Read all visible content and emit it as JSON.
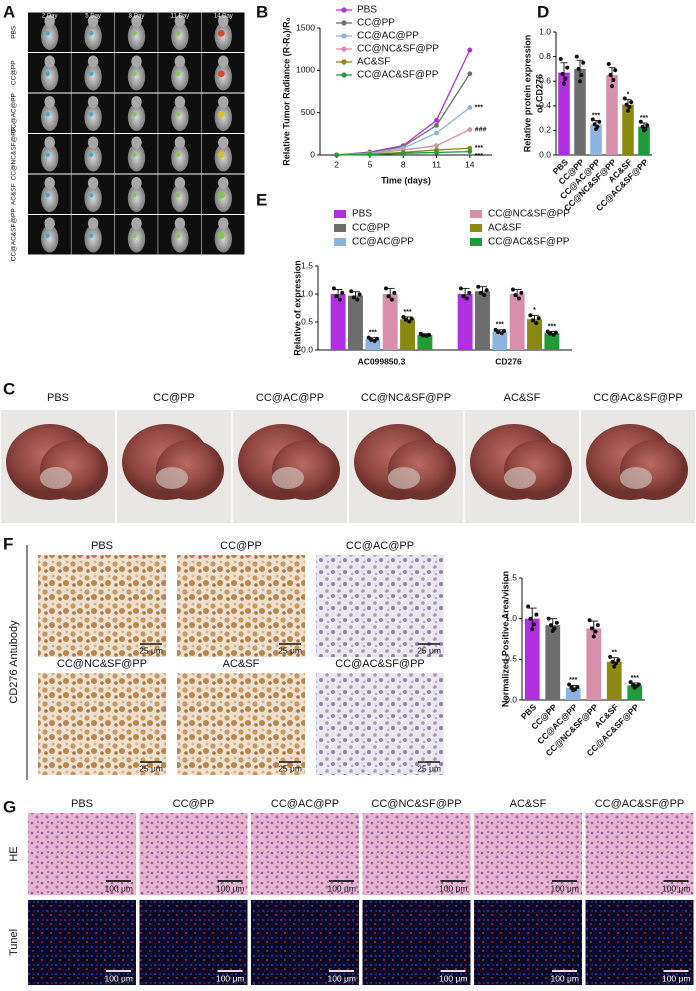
{
  "panel_labels": [
    "A",
    "B",
    "C",
    "D",
    "E",
    "F",
    "G"
  ],
  "imaging": {
    "days": [
      "2 Day",
      "5 Day",
      "8 Day",
      "11 Day",
      "14 Day"
    ],
    "groups": [
      "PBS",
      "CC@PP",
      "CC@AC@PP",
      "CC@NC&SF@PP",
      "AC&SF",
      "CC@AC&SF@PP"
    ]
  },
  "liver_photos": {
    "groups": [
      "PBS",
      "CC@PP",
      "CC@AC@PP",
      "CC@NC&SF@PP",
      "AC&SF",
      "CC@AC&SF@PP"
    ]
  },
  "ihc": {
    "stain": "CD276 Antubody",
    "groups": [
      "PBS",
      "CC@PP",
      "CC@AC@PP",
      "CC@NC&SF@PP",
      "AC&SF",
      "CC@AC&SF@PP"
    ],
    "scale": "25 μm"
  },
  "histology": {
    "groups": [
      "PBS",
      "CC@PP",
      "CC@AC@PP",
      "CC@NC&SF@PP",
      "AC&SF",
      "CC@AC&SF@PP"
    ],
    "rows": [
      "HE",
      "Tunel"
    ],
    "scale": "100 μm"
  },
  "chart_data": [
    {
      "type": "line",
      "ylabel": "Relative Tumor Radiance (R-R₀)/R₀",
      "xlabel": "Time (days)",
      "x": [
        2,
        5,
        8,
        11,
        14
      ],
      "xlim": [
        0.5,
        16
      ],
      "xticks": [
        2,
        5,
        8,
        11,
        14
      ],
      "ylim": [
        0,
        1500
      ],
      "yticks": [
        0,
        500,
        1000,
        1500
      ],
      "series": [
        {
          "name": "PBS",
          "color": "#b030e0",
          "values": [
            0,
            35,
            110,
            410,
            1240
          ]
        },
        {
          "name": "CC@PP",
          "color": "#6d6d6d",
          "values": [
            0,
            30,
            100,
            350,
            960
          ]
        },
        {
          "name": "CC@AC@PP",
          "color": "#8db3df",
          "values": [
            0,
            20,
            80,
            260,
            560
          ],
          "significance": "***"
        },
        {
          "name": "CC@NC&SF@PP",
          "color": "#d88fac",
          "values": [
            0,
            15,
            60,
            110,
            300
          ],
          "significance": "###"
        },
        {
          "name": "AC&SF",
          "color": "#8a8a12",
          "values": [
            0,
            10,
            30,
            60,
            80
          ],
          "significance": "***"
        },
        {
          "name": "CC@AC&SF@PP",
          "color": "#1f9b3a",
          "values": [
            0,
            5,
            20,
            30,
            40
          ],
          "significance": "***"
        }
      ]
    },
    {
      "type": "bar",
      "ylabel": [
        "Relative protein expression",
        "of CD276"
      ],
      "categories": [
        "PBS",
        "CC@PP",
        "CC@AC@PP",
        "CC@NC&SF@PP",
        "AC&SF",
        "CC@AC&SF@PP"
      ],
      "values": [
        0.67,
        0.7,
        0.25,
        0.65,
        0.41,
        0.23
      ],
      "errors": [
        0.08,
        0.07,
        0.03,
        0.06,
        0.04,
        0.03
      ],
      "points": [
        [
          0.78,
          0.71,
          0.66,
          0.62,
          0.58
        ],
        [
          0.8,
          0.75,
          0.7,
          0.65,
          0.6
        ],
        [
          0.29,
          0.27,
          0.25,
          0.23,
          0.21
        ],
        [
          0.74,
          0.69,
          0.65,
          0.61,
          0.56
        ],
        [
          0.46,
          0.43,
          0.41,
          0.39,
          0.36
        ],
        [
          0.27,
          0.24,
          0.23,
          0.21,
          0.2
        ]
      ],
      "colors": [
        "#b030e0",
        "#6d6d6d",
        "#8db3df",
        "#d88fac",
        "#8a8a12",
        "#1f9b3a"
      ],
      "significance": [
        null,
        null,
        "***",
        null,
        "*",
        "***"
      ],
      "ylim": [
        0,
        1.0
      ],
      "yticks": [
        {
          "value": 0,
          "label": "0.0"
        },
        0.2,
        0.4,
        0.6,
        0.8,
        {
          "value": 1,
          "label": "1.0"
        }
      ]
    },
    {
      "type": "bar",
      "ylabel": "Relative of expression",
      "categories": [
        "AC099850.3",
        "CD276"
      ],
      "ylim": [
        0,
        1.5
      ],
      "yticks": [
        {
          "value": 0,
          "label": "0.0"
        },
        0.5,
        {
          "value": 1,
          "label": "1.0"
        },
        1.5
      ],
      "series": [
        {
          "name": "PBS",
          "color": "#b030e0",
          "values": [
            1.0,
            1.0
          ],
          "errors": [
            0.08,
            0.1
          ],
          "points": [
            [
              1.1,
              1.02,
              0.96,
              0.9
            ],
            [
              1.1,
              1.02,
              0.96,
              0.92
            ]
          ]
        },
        {
          "name": "CC@PP",
          "color": "#6d6d6d",
          "values": [
            0.97,
            1.05
          ],
          "errors": [
            0.07,
            0.08
          ],
          "points": [
            [
              1.05,
              0.99,
              0.94,
              0.9
            ],
            [
              1.13,
              1.07,
              1.02,
              0.98
            ]
          ]
        },
        {
          "name": "CC@AC@PP",
          "color": "#8db3df",
          "values": [
            0.19,
            0.33
          ],
          "errors": [
            0.03,
            0.03
          ],
          "points": [
            [
              0.22,
              0.2,
              0.18,
              0.16
            ],
            [
              0.36,
              0.34,
              0.32,
              0.3
            ]
          ],
          "significance": [
            "***",
            "***"
          ]
        },
        {
          "name": "CC@NC&SF@PP",
          "color": "#d88fac",
          "values": [
            1.0,
            1.0
          ],
          "errors": [
            0.1,
            0.08
          ],
          "points": [
            [
              1.1,
              1.02,
              0.96,
              0.9
            ],
            [
              1.08,
              1.02,
              0.98,
              0.92
            ]
          ]
        },
        {
          "name": "AC&SF",
          "color": "#8a8a12",
          "values": [
            0.55,
            0.55
          ],
          "errors": [
            0.04,
            0.07
          ],
          "points": [
            [
              0.59,
              0.56,
              0.54,
              0.51
            ],
            [
              0.62,
              0.57,
              0.53,
              0.48
            ]
          ],
          "significance": [
            "***",
            "*"
          ]
        },
        {
          "name": "CC@AC&SF@PP",
          "color": "#1f9b3a",
          "values": [
            0.27,
            0.3
          ],
          "errors": [
            0.02,
            0.03
          ],
          "points": [
            [
              0.29,
              0.27,
              0.26,
              0.25
            ],
            [
              0.33,
              0.31,
              0.29,
              0.27
            ]
          ],
          "significance": [
            null,
            "***"
          ]
        }
      ]
    },
    {
      "type": "bar",
      "ylabel": "Normalized Positive Area/vision",
      "categories": [
        "PBS",
        "CC@PP",
        "CC@AC@PP",
        "CC@NC&SF@PP",
        "AC&SF",
        "CC@AC&SF@PP"
      ],
      "values": [
        1.0,
        0.92,
        0.15,
        0.88,
        0.47,
        0.18
      ],
      "errors": [
        0.13,
        0.08,
        0.03,
        0.09,
        0.05,
        0.03
      ],
      "points": [
        [
          1.15,
          1.05,
          1.0,
          0.93,
          0.87
        ],
        [
          1.0,
          0.95,
          0.92,
          0.88,
          0.85
        ],
        [
          0.19,
          0.16,
          0.15,
          0.13,
          0.12
        ],
        [
          0.98,
          0.92,
          0.88,
          0.84,
          0.78
        ],
        [
          0.53,
          0.49,
          0.47,
          0.45,
          0.41
        ],
        [
          0.22,
          0.19,
          0.18,
          0.17,
          0.15
        ]
      ],
      "colors": [
        "#b030e0",
        "#6d6d6d",
        "#8db3df",
        "#d88fac",
        "#8a8a12",
        "#1f9b3a"
      ],
      "significance": [
        null,
        null,
        "***",
        null,
        "**",
        "***"
      ],
      "ylim": [
        0,
        1.5
      ],
      "yticks": [
        {
          "value": 0,
          "label": "0.0"
        },
        0.5,
        {
          "value": 1,
          "label": "1.0"
        },
        1.5
      ]
    }
  ]
}
